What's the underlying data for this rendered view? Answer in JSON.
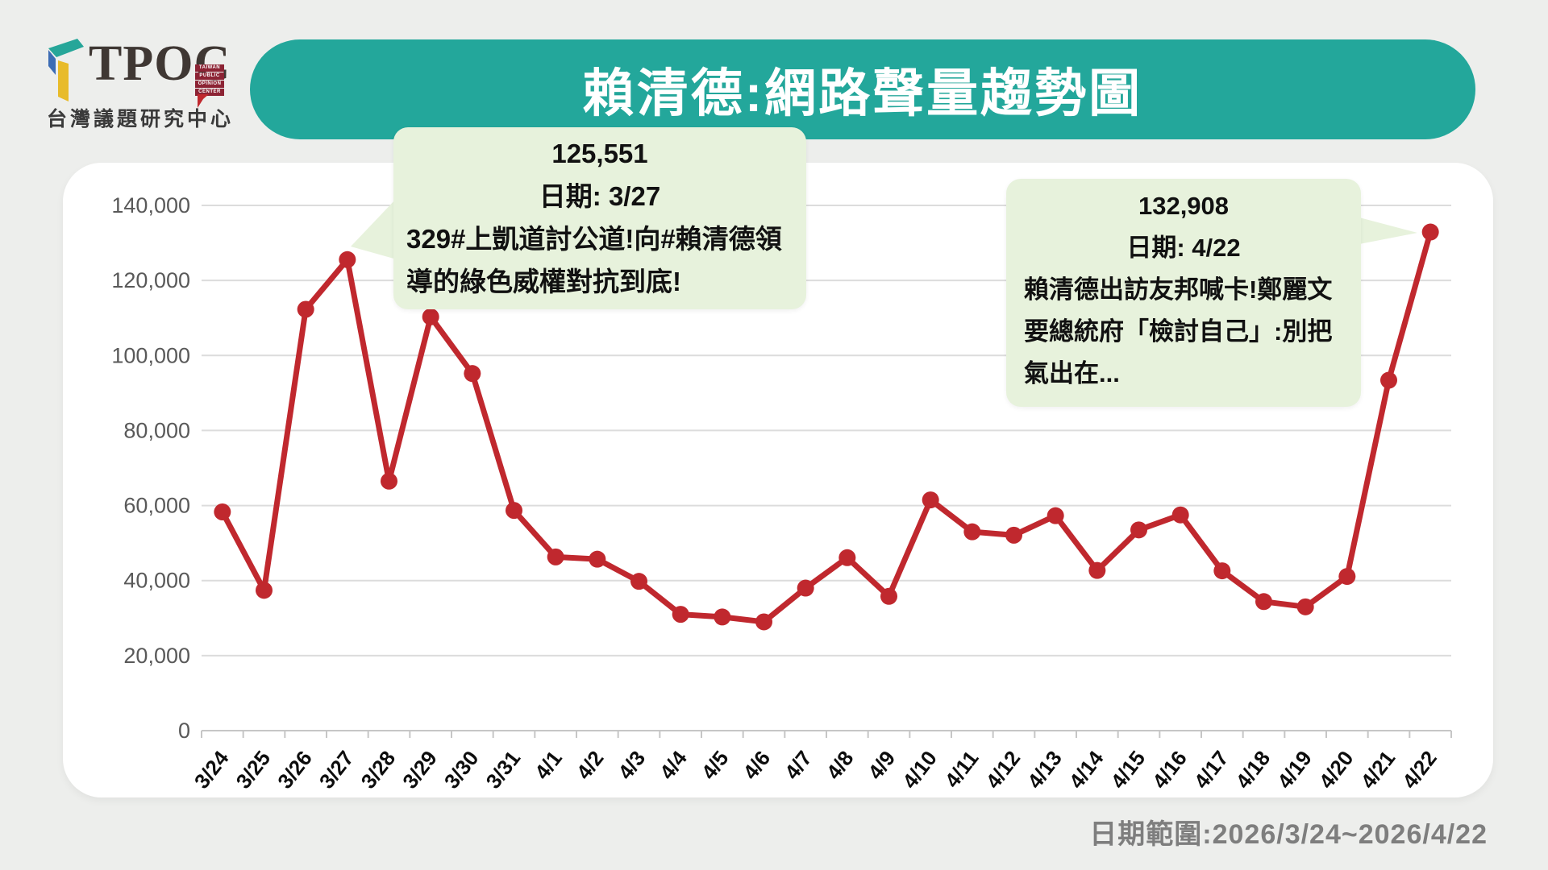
{
  "logo": {
    "brand": "TPOC",
    "stack": [
      "TAIWAN",
      "PUBLIC",
      "OPINION",
      "CENTER"
    ],
    "org_zh": "台灣議題研究中心"
  },
  "header": {
    "title": "賴清德:網路聲量趨勢圖"
  },
  "annotations": [
    {
      "value": "125,551",
      "date_line": "日期: 3/27",
      "headline": "329#上凱道討公道!向#賴清德領導的綠色威權對抗到底!"
    },
    {
      "value": "132,908",
      "date_line": "日期: 4/22",
      "headline": "賴清德出訪友邦喊卡!鄭麗文要總統府「檢討自己」:別把氣出在..."
    }
  ],
  "footer": {
    "date_range": "日期範圍:2026/3/24~2026/4/22"
  },
  "colors": {
    "banner_teal": "#23a79b",
    "line_red": "#c0282e",
    "callout_green": "#e7f2dc",
    "gridline": "#dcdcdc",
    "axis_line": "#c6c6c6",
    "y_label": "#595959",
    "x_label": "#0d0d0d",
    "logo_maroon": "#8c2334",
    "logo_teal": "#26a699",
    "logo_blue": "#3c6cb4",
    "logo_yellow": "#e8bb2a",
    "footer_gray": "#7e7e7e"
  },
  "chart_data": {
    "type": "line",
    "title": "賴清德:網路聲量趨勢圖",
    "xlabel": "",
    "ylabel": "",
    "ylim": [
      0,
      140000
    ],
    "ytick_step": 20000,
    "grid": true,
    "legend_position": "none",
    "categories": [
      "3/24",
      "3/25",
      "3/26",
      "3/27",
      "3/28",
      "3/29",
      "3/30",
      "3/31",
      "4/1",
      "4/2",
      "4/3",
      "4/4",
      "4/5",
      "4/6",
      "4/7",
      "4/8",
      "4/9",
      "4/10",
      "4/11",
      "4/12",
      "4/13",
      "4/14",
      "4/15",
      "4/16",
      "4/17",
      "4/18",
      "4/19",
      "4/20",
      "4/21",
      "4/22"
    ],
    "values": [
      58300,
      37400,
      112300,
      125551,
      66500,
      110300,
      95200,
      58700,
      46300,
      45700,
      39800,
      31000,
      30300,
      29000,
      38000,
      46100,
      35800,
      61500,
      53000,
      52100,
      57300,
      42700,
      53500,
      57500,
      42600,
      34400,
      33000,
      41100,
      93400,
      132908
    ],
    "annotated_points": [
      {
        "category": "3/27",
        "value": 125551
      },
      {
        "category": "4/22",
        "value": 132908
      }
    ]
  }
}
